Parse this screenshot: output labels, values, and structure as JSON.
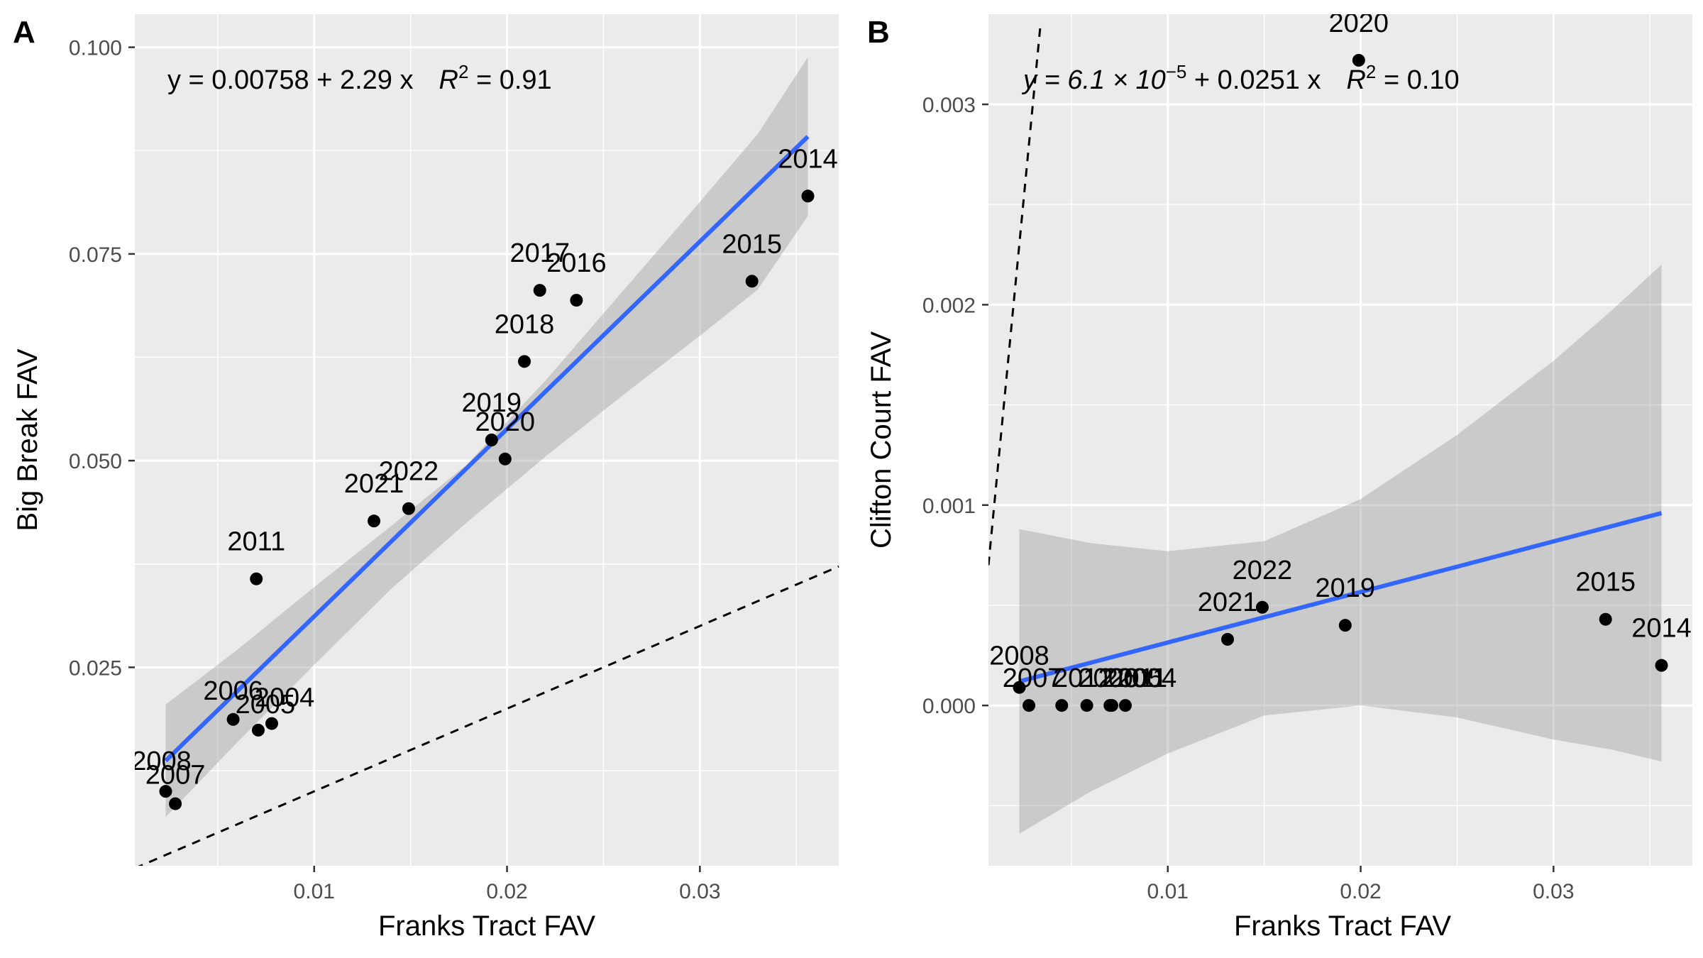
{
  "chart_data": [
    {
      "panel_label": "A",
      "type": "scatter",
      "xlabel": "Franks Tract FAV",
      "ylabel": "Big Break FAV",
      "xlim": [
        0.0007,
        0.0372
      ],
      "ylim": [
        0.001,
        0.104
      ],
      "x_ticks": [
        {
          "value": 0.01,
          "label": "0.01"
        },
        {
          "value": 0.02,
          "label": "0.02"
        },
        {
          "value": 0.03,
          "label": "0.03"
        }
      ],
      "y_ticks": [
        {
          "value": 0.025,
          "label": "0.025"
        },
        {
          "value": 0.05,
          "label": "0.050"
        },
        {
          "value": 0.075,
          "label": "0.075"
        },
        {
          "value": 0.1,
          "label": "0.100"
        }
      ],
      "grid": true,
      "equation_label": {
        "text": "y = 0.00758 + 2.29 x",
        "r2_label": "R",
        "r2_exponent": "2",
        "r2_value": " = 0.91"
      },
      "points": [
        {
          "label": "2004",
          "x": 0.0078,
          "y": 0.0182
        },
        {
          "label": "2005",
          "x": 0.0071,
          "y": 0.0174
        },
        {
          "label": "2006",
          "x": 0.0058,
          "y": 0.0187
        },
        {
          "label": "2007",
          "x": 0.0028,
          "y": 0.0085
        },
        {
          "label": "2008",
          "x": 0.0023,
          "y": 0.01
        },
        {
          "label": "2011",
          "x": 0.007,
          "y": 0.0357
        },
        {
          "label": "2014",
          "x": 0.0356,
          "y": 0.082
        },
        {
          "label": "2015",
          "x": 0.0327,
          "y": 0.0717
        },
        {
          "label": "2016",
          "x": 0.0236,
          "y": 0.0694
        },
        {
          "label": "2017",
          "x": 0.0217,
          "y": 0.0706
        },
        {
          "label": "2018",
          "x": 0.0209,
          "y": 0.062
        },
        {
          "label": "2019",
          "x": 0.0192,
          "y": 0.0525
        },
        {
          "label": "2020",
          "x": 0.0199,
          "y": 0.0502
        },
        {
          "label": "2021",
          "x": 0.0131,
          "y": 0.0427
        },
        {
          "label": "2022",
          "x": 0.0149,
          "y": 0.0442
        }
      ],
      "fit_line": {
        "x": [
          0.0023,
          0.0356
        ],
        "y": [
          0.0137,
          0.0892
        ],
        "color": "#3366FF"
      },
      "confidence_band": {
        "x": [
          0.0023,
          0.006,
          0.01,
          0.014,
          0.0179,
          0.022,
          0.026,
          0.03,
          0.033,
          0.0356
        ],
        "upper": [
          0.0205,
          0.0271,
          0.0347,
          0.0421,
          0.0495,
          0.0597,
          0.0705,
          0.0813,
          0.0895,
          0.0988
        ],
        "lower": [
          0.0069,
          0.0159,
          0.0253,
          0.0345,
          0.0425,
          0.0505,
          0.0579,
          0.0651,
          0.0707,
          0.0796
        ]
      },
      "identity_line": {
        "x": [
          0.0007,
          0.0372
        ],
        "y": [
          0.0007,
          0.0372
        ],
        "style": "dashed"
      }
    },
    {
      "panel_label": "B",
      "type": "scatter",
      "xlabel": "Franks Tract FAV",
      "ylabel": "Clifton Court FAV",
      "xlim": [
        0.0007,
        0.0372
      ],
      "ylim": [
        -0.0008,
        0.00345
      ],
      "x_ticks": [
        {
          "value": 0.01,
          "label": "0.01"
        },
        {
          "value": 0.02,
          "label": "0.02"
        },
        {
          "value": 0.03,
          "label": "0.03"
        }
      ],
      "y_ticks": [
        {
          "value": 0,
          "label": "0.000"
        },
        {
          "value": 0.001,
          "label": "0.001"
        },
        {
          "value": 0.002,
          "label": "0.002"
        },
        {
          "value": 0.003,
          "label": "0.003"
        }
      ],
      "grid": true,
      "equation_label": {
        "prefix": "y = 6.1 × 10",
        "exponent": "−5",
        "suffix": " + 0.0251 x",
        "r2_label": "R",
        "r2_exponent": "2",
        "r2_value": " = 0.10"
      },
      "points": [
        {
          "label": "2004",
          "x": 0.0078,
          "y": 0.0
        },
        {
          "label": "2005",
          "x": 0.0071,
          "y": 0.0
        },
        {
          "label": "2006",
          "x": 0.0058,
          "y": 0.0
        },
        {
          "label": "2007",
          "x": 0.0028,
          "y": 0.0
        },
        {
          "label": "2008",
          "x": 0.0023,
          "y": 9e-05
        },
        {
          "label": "2011",
          "x": 0.007,
          "y": 0.0
        },
        {
          "label": "2012",
          "x": 0.0045,
          "y": 0.0
        },
        {
          "label": "2014",
          "x": 0.0356,
          "y": 0.0002
        },
        {
          "label": "2015",
          "x": 0.0327,
          "y": 0.00043
        },
        {
          "label": "2019",
          "x": 0.0192,
          "y": 0.0004
        },
        {
          "label": "2020",
          "x": 0.0199,
          "y": 0.00322
        },
        {
          "label": "2021",
          "x": 0.0131,
          "y": 0.00033
        },
        {
          "label": "2022",
          "x": 0.0149,
          "y": 0.00049
        }
      ],
      "fit_line": {
        "x": [
          0.0023,
          0.0356
        ],
        "y": [
          0.00012,
          0.00096
        ],
        "color": "#3366FF"
      },
      "confidence_band": {
        "x": [
          0.0023,
          0.006,
          0.01,
          0.015,
          0.02,
          0.025,
          0.03,
          0.033,
          0.0356
        ],
        "upper": [
          0.00088,
          0.00081,
          0.00077,
          0.00082,
          0.00103,
          0.00135,
          0.00172,
          0.00197,
          0.0022
        ],
        "lower": [
          -0.00064,
          -0.00043,
          -0.00024,
          -5e-05,
          0.0,
          -6e-05,
          -0.00017,
          -0.00022,
          -0.00028
        ]
      },
      "identity_line": {
        "x": [
          0.0007,
          0.0034
        ],
        "y": [
          0.0007,
          0.0034
        ],
        "style": "dashed"
      }
    }
  ]
}
